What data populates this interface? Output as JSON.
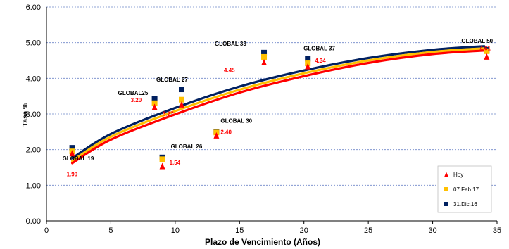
{
  "chart_data": {
    "type": "scatter",
    "xlabel": "Plazo de Vencimiento  (Años)",
    "ylabel": "Tasa %",
    "xlim": [
      0,
      35
    ],
    "ylim": [
      0,
      6
    ],
    "x_ticks": [
      "0",
      "5",
      "10",
      "15",
      "20",
      "25",
      "30",
      "35"
    ],
    "y_ticks": [
      "0.00",
      "1.00",
      "2.00",
      "3.00",
      "4.00",
      "5.00",
      "6.00"
    ],
    "grid": "horizontal-dashed",
    "legend_position": "bottom-right",
    "bonds": [
      {
        "name": "GLOBAL 19",
        "x": 2.0
      },
      {
        "name": "GLOBAL25",
        "x": 8.4
      },
      {
        "name": "GLOBAL 26",
        "x": 9.0
      },
      {
        "name": "GLOBAL 27",
        "x": 10.5
      },
      {
        "name": "GLOBAL 30",
        "x": 13.2
      },
      {
        "name": "GLOBAL 33",
        "x": 16.9
      },
      {
        "name": "GLOBAL 37",
        "x": 20.3
      },
      {
        "name": "GLOBAL 50",
        "x": 34.2
      }
    ],
    "value_labels": [
      "1.90",
      "3.20",
      "1.54",
      "3.27",
      "2.40",
      "4.45",
      "4.34",
      "4.61"
    ],
    "series": [
      {
        "name": "Hoy",
        "marker": "triangle",
        "color": "#ff0000",
        "values": [
          1.9,
          3.2,
          1.54,
          3.27,
          2.4,
          4.45,
          4.34,
          4.61
        ],
        "curve": {
          "x": [
            2,
            5,
            10,
            15,
            20,
            25,
            30,
            34
          ],
          "y": [
            1.62,
            2.28,
            2.99,
            3.6,
            4.06,
            4.43,
            4.68,
            4.78
          ]
        }
      },
      {
        "name": "07.Feb.17",
        "marker": "square",
        "color": "#ffc000",
        "values": [
          1.95,
          3.3,
          1.73,
          3.4,
          2.48,
          4.6,
          4.42,
          4.76
        ],
        "curve": {
          "x": [
            2,
            5,
            10,
            15,
            20,
            25,
            30,
            34
          ],
          "y": [
            1.68,
            2.36,
            3.08,
            3.68,
            4.14,
            4.5,
            4.74,
            4.84
          ]
        }
      },
      {
        "name": "31.Dic.16",
        "marker": "square",
        "color": "#002060",
        "values": [
          2.05,
          3.43,
          1.78,
          3.69,
          2.5,
          4.72,
          4.55,
          4.8
        ],
        "curve": {
          "x": [
            2,
            5,
            10,
            15,
            20,
            25,
            30,
            34
          ],
          "y": [
            1.76,
            2.44,
            3.17,
            3.77,
            4.22,
            4.57,
            4.8,
            4.9
          ]
        }
      }
    ]
  }
}
